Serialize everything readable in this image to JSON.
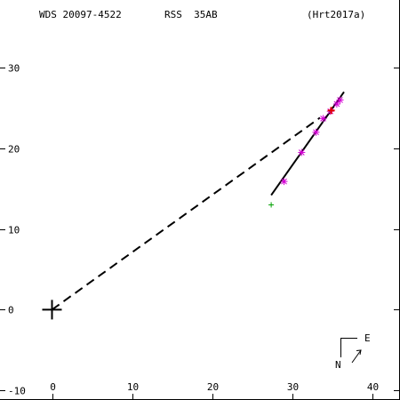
{
  "header": {
    "wds": "WDS 20097-4522",
    "discoverer": "RSS  35AB",
    "reference": "(Hrt2017a)"
  },
  "compass": {
    "east": "E",
    "north": "N"
  },
  "chart_data": {
    "type": "scatter",
    "xlim": [
      -6.5,
      43.5
    ],
    "ylim": [
      -11.2,
      38.4
    ],
    "x_ticks": [
      0,
      10,
      20,
      30,
      40
    ],
    "y_ticks": [
      -10,
      0,
      10,
      20,
      30
    ],
    "x_tick_labels": [
      "0",
      "10",
      "20",
      "30",
      "40"
    ],
    "y_tick_labels": [
      "-10",
      "0",
      "10",
      "20",
      "30"
    ],
    "primary": {
      "x": 0,
      "y": 0
    },
    "orbit_line": {
      "x1": 27.4,
      "y1": 14.2,
      "x2": 36.5,
      "y2": 27.0
    },
    "reference_line": {
      "x1": 0,
      "y1": 0,
      "x2": 33.5,
      "y2": 23.8
    },
    "first_observation": {
      "x": 27.4,
      "y": 13.0
    },
    "latest_observation": {
      "x": 34.9,
      "y": 24.7
    },
    "measurements": [
      {
        "x": 29.0,
        "y": 15.9
      },
      {
        "x": 31.2,
        "y": 19.5
      },
      {
        "x": 33.0,
        "y": 22.0
      },
      {
        "x": 33.9,
        "y": 23.7
      },
      {
        "x": 34.8,
        "y": 24.6
      },
      {
        "x": 35.6,
        "y": 25.5
      },
      {
        "x": 36.0,
        "y": 26.0
      }
    ]
  }
}
